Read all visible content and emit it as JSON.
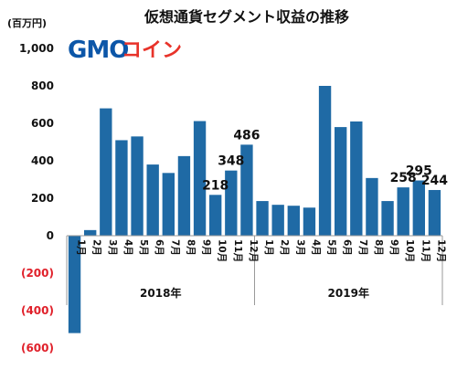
{
  "chart_data": {
    "type": "bar",
    "title": "仮想通貨セグメント収益の推移",
    "ylabel": "(百万円)",
    "ylim": [
      -600,
      1000
    ],
    "yticks": [
      {
        "value": 1000,
        "label": "1,000"
      },
      {
        "value": 800,
        "label": "800"
      },
      {
        "value": 600,
        "label": "600"
      },
      {
        "value": 400,
        "label": "400"
      },
      {
        "value": 200,
        "label": "200"
      },
      {
        "value": 0,
        "label": "0"
      },
      {
        "value": -200,
        "label": "(200)"
      },
      {
        "value": -400,
        "label": "(400)"
      },
      {
        "value": -600,
        "label": "(600)"
      }
    ],
    "negative_tick_color": "#e0202a",
    "bar_color": "#1f6aa5",
    "grid": false,
    "categories": [
      "1月",
      "2月",
      "3月",
      "4月",
      "5月",
      "6月",
      "7月",
      "8月",
      "9月",
      "10月",
      "11月",
      "12月",
      "1月",
      "2月",
      "3月",
      "4月",
      "5月",
      "6月",
      "7月",
      "8月",
      "9月",
      "10月",
      "11月",
      "12月"
    ],
    "groups": [
      {
        "label": "2018年",
        "start": 0,
        "end": 11
      },
      {
        "label": "2019年",
        "start": 12,
        "end": 23
      }
    ],
    "values": [
      -520,
      30,
      680,
      510,
      530,
      380,
      335,
      425,
      612,
      218,
      348,
      486,
      185,
      165,
      160,
      150,
      800,
      580,
      610,
      308,
      185,
      258,
      295,
      244
    ],
    "data_labels": [
      {
        "index": 9,
        "text": "218"
      },
      {
        "index": 10,
        "text": "348"
      },
      {
        "index": 11,
        "text": "486"
      },
      {
        "index": 21,
        "text": "258"
      },
      {
        "index": 22,
        "text": "295"
      },
      {
        "index": 23,
        "text": "244"
      }
    ]
  },
  "logo": {
    "wordmark_latin": "GMO",
    "wordmark_kana": "コイン",
    "latin_color": "#0c56a8",
    "kana_color": "#e8332a"
  }
}
